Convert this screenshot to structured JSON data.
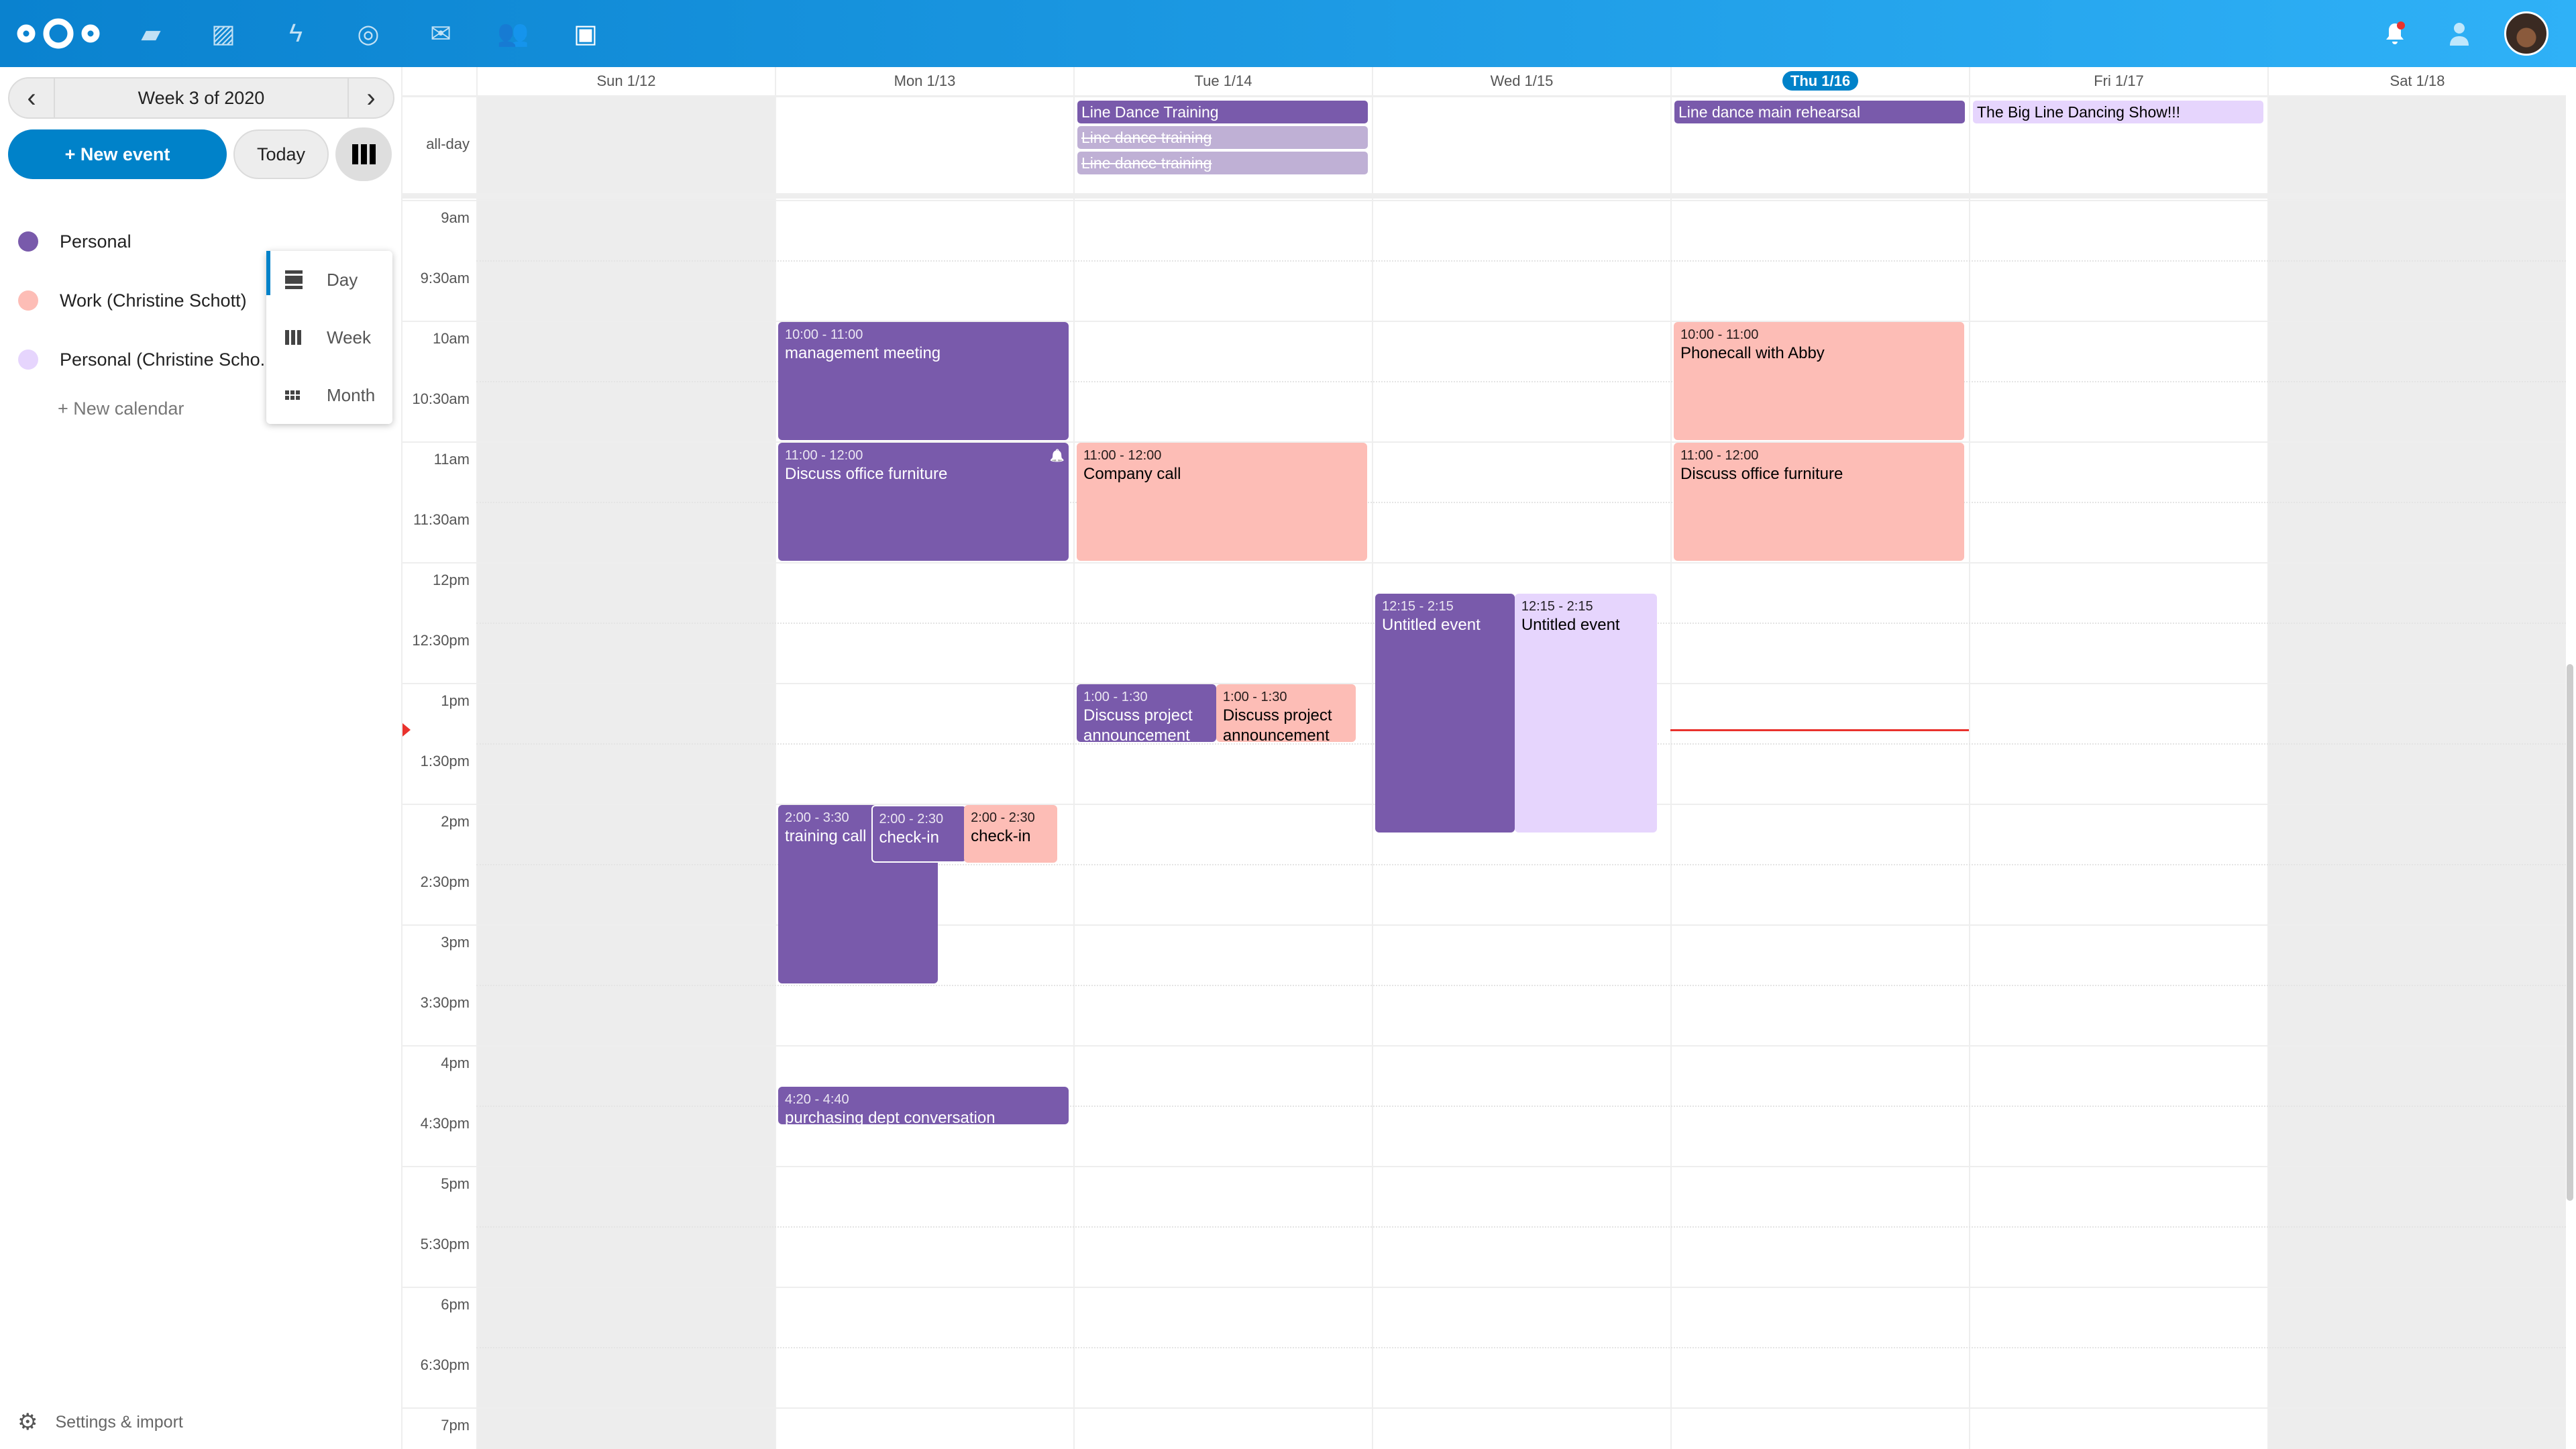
{
  "topbar": {
    "apps": [
      "files-icon",
      "photos-icon",
      "activity-icon",
      "talk-icon",
      "mail-icon",
      "contacts-icon",
      "calendar-icon"
    ],
    "active_app": "calendar-icon",
    "right": [
      "notifications-icon",
      "contacts-menu-icon",
      "user-avatar"
    ]
  },
  "sidebar": {
    "week_label": "Week 3 of 2020",
    "new_event": "+ New event",
    "today": "Today",
    "view_menu": [
      {
        "label": "Day",
        "active": true
      },
      {
        "label": "Week",
        "active": false
      },
      {
        "label": "Month",
        "active": false
      }
    ],
    "calendars": [
      {
        "name": "Personal",
        "color": "#795aab"
      },
      {
        "name": "Work (Christine Schott)",
        "color": "#fdbdb6"
      },
      {
        "name": "Personal (Christine Scho...",
        "color": "#e6d5fd",
        "shared": true
      }
    ],
    "new_calendar": "+ New calendar",
    "settings": "Settings & import"
  },
  "calendar": {
    "days": [
      {
        "label": "Sun 1/12",
        "weekend": true
      },
      {
        "label": "Mon 1/13"
      },
      {
        "label": "Tue 1/14"
      },
      {
        "label": "Wed 1/15"
      },
      {
        "label": "Thu 1/16",
        "today": true
      },
      {
        "label": "Fri 1/17"
      },
      {
        "label": "Sat 1/18",
        "weekend": true
      }
    ],
    "allday_label": "all-day",
    "times": [
      "9am",
      "9:30am",
      "10am",
      "10:30am",
      "11am",
      "11:30am",
      "12pm",
      "12:30pm",
      "1pm",
      "1:30pm",
      "2pm",
      "2:30pm",
      "3pm",
      "3:30pm",
      "4pm",
      "4:30pm",
      "5pm",
      "5:30pm",
      "6pm",
      "6:30pm",
      "7pm"
    ],
    "allday_events": [
      {
        "day": 2,
        "title": "Line Dance Training",
        "style": "purple"
      },
      {
        "day": 2,
        "title": "Line dance training",
        "style": "cancelled"
      },
      {
        "day": 2,
        "title": "Line dance training",
        "style": "cancelled"
      },
      {
        "day": 4,
        "title": "Line dance main rehearsal",
        "style": "purple"
      },
      {
        "day": 5,
        "title": "The Big Line Dancing Show!!!",
        "style": "lavender"
      }
    ],
    "events": [
      {
        "day": 1,
        "time": "10:00 - 11:00",
        "title": "management meeting",
        "start": 10,
        "end": 11,
        "style": "purple"
      },
      {
        "day": 1,
        "time": "11:00 - 12:00",
        "title": "Discuss office furniture",
        "start": 11,
        "end": 12,
        "style": "purple",
        "reminder": true
      },
      {
        "day": 2,
        "time": "11:00 - 12:00",
        "title": "Company call",
        "start": 11,
        "end": 12,
        "style": "pink"
      },
      {
        "day": 2,
        "time": "1:00 - 1:30",
        "title": "Discuss project announcement",
        "start": 13,
        "end": 13.5,
        "style": "purple"
      },
      {
        "day": 2,
        "time": "1:00 - 1:30",
        "title": "Discuss project announcement",
        "start": 13,
        "end": 13.5,
        "style": "pink"
      },
      {
        "day": 3,
        "time": "12:15 - 2:15",
        "title": "Untitled event",
        "start": 12.25,
        "end": 14.25,
        "style": "purple"
      },
      {
        "day": 3,
        "time": "12:15 - 2:15",
        "title": "Untitled event",
        "start": 12.25,
        "end": 14.25,
        "style": "lavender"
      },
      {
        "day": 4,
        "time": "10:00 - 11:00",
        "title": "Phonecall with Abby",
        "start": 10,
        "end": 11,
        "style": "pink"
      },
      {
        "day": 4,
        "time": "11:00 - 12:00",
        "title": "Discuss office furniture",
        "start": 11,
        "end": 12,
        "style": "pink"
      },
      {
        "day": 1,
        "time": "2:00 - 3:30",
        "title": "training call",
        "start": 14,
        "end": 15.5,
        "style": "purple"
      },
      {
        "day": 1,
        "time": "2:00 - 2:30",
        "title": "check-in",
        "start": 14,
        "end": 14.5,
        "style": "purple"
      },
      {
        "day": 1,
        "time": "2:00 - 2:30",
        "title": "check-in",
        "start": 14,
        "end": 14.5,
        "style": "pink"
      },
      {
        "day": 1,
        "time": "4:20 - 4:40",
        "title": "purchasing dept conversation",
        "start": 16.333,
        "end": 16.667,
        "style": "purple"
      }
    ],
    "now_marker": {
      "day": 4,
      "time": 13.37
    },
    "colors": {
      "purple": "#795aab",
      "pink": "#fdbdb6",
      "lavender": "#e6d5fd",
      "cancelled": "#bfb0d5",
      "accent": "#0082c9",
      "now": "#e9322d"
    }
  }
}
